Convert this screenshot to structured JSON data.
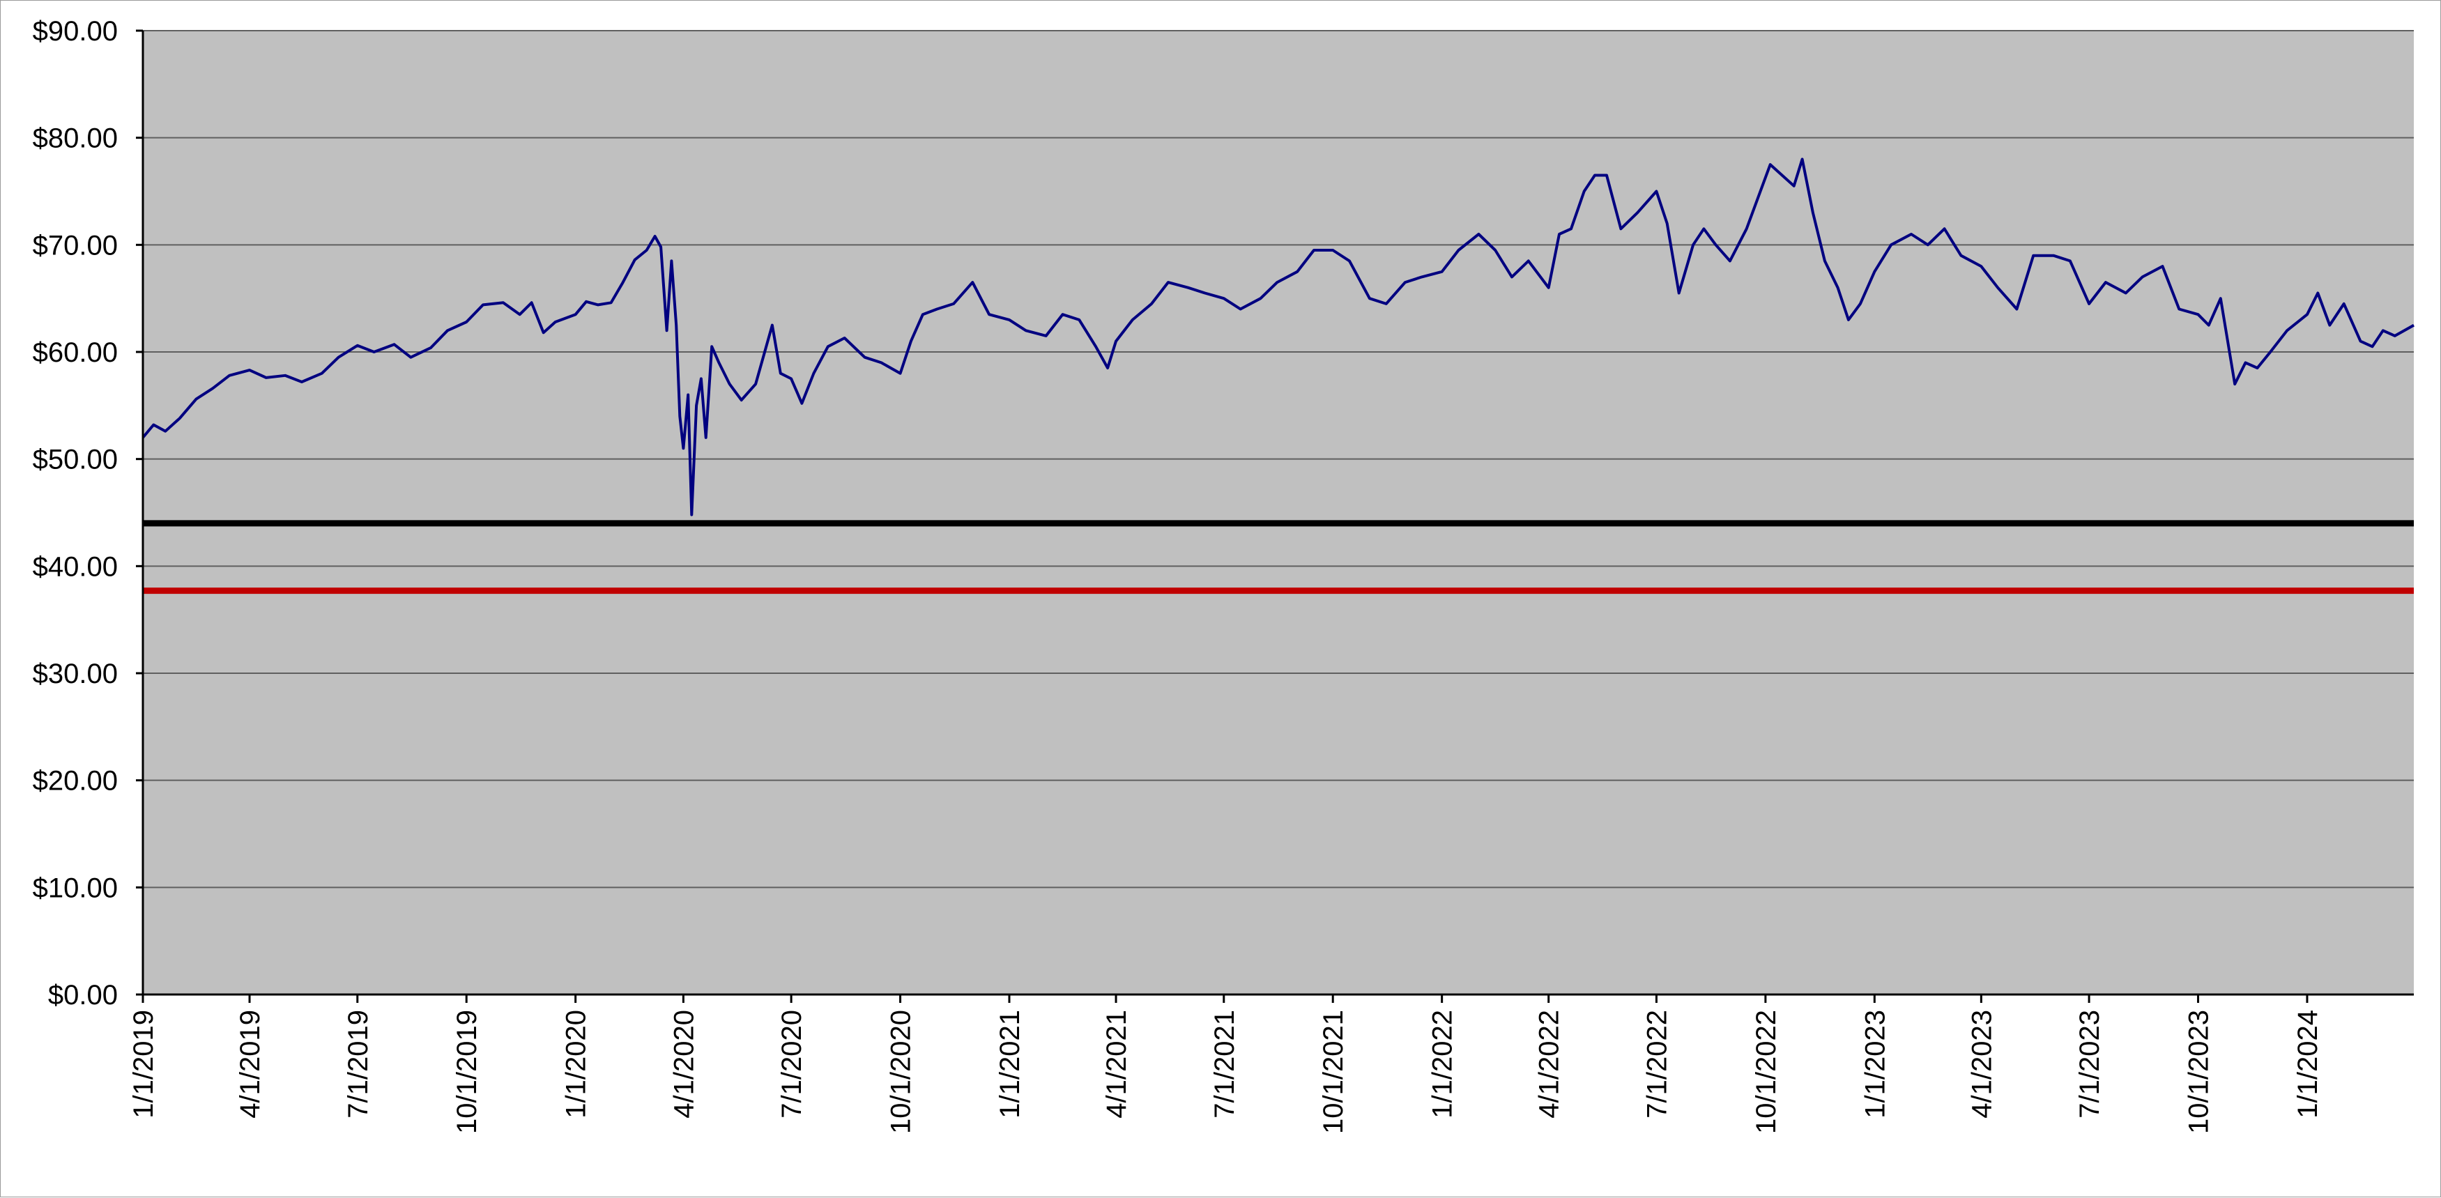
{
  "chart_data": {
    "type": "line",
    "title": "",
    "xlabel": "",
    "ylabel": "",
    "ylim": [
      0,
      90
    ],
    "y_ticks": [
      "$0.00",
      "$10.00",
      "$20.00",
      "$30.00",
      "$40.00",
      "$50.00",
      "$60.00",
      "$70.00",
      "$80.00",
      "$90.00"
    ],
    "y_tick_values": [
      0,
      10,
      20,
      30,
      40,
      50,
      60,
      70,
      80,
      90
    ],
    "x_range": [
      "2019-01-01",
      "2024-03-31"
    ],
    "x_ticks": [
      "1/1/2019",
      "4/1/2019",
      "7/1/2019",
      "10/1/2019",
      "1/1/2020",
      "4/1/2020",
      "7/1/2020",
      "10/1/2020",
      "1/1/2021",
      "4/1/2021",
      "7/1/2021",
      "10/1/2021",
      "1/1/2022",
      "4/1/2022",
      "7/1/2022",
      "10/1/2022",
      "1/1/2023",
      "4/1/2023",
      "7/1/2023",
      "10/1/2023",
      "1/1/2024"
    ],
    "x_tick_dates": [
      "2019-01-01",
      "2019-04-01",
      "2019-07-01",
      "2019-10-01",
      "2020-01-01",
      "2020-04-01",
      "2020-07-01",
      "2020-10-01",
      "2021-01-01",
      "2021-04-01",
      "2021-07-01",
      "2021-10-01",
      "2022-01-01",
      "2022-04-01",
      "2022-07-01",
      "2022-10-01",
      "2023-01-01",
      "2023-04-01",
      "2023-07-01",
      "2023-10-01",
      "2024-01-01"
    ],
    "grid": true,
    "legend": "none",
    "background_color": "#c0c0c0",
    "series": [
      {
        "color": "#000080",
        "points": [
          [
            "2019-01-01",
            52.0
          ],
          [
            "2019-01-10",
            53.2
          ],
          [
            "2019-01-20",
            52.6
          ],
          [
            "2019-02-01",
            53.8
          ],
          [
            "2019-02-15",
            55.6
          ],
          [
            "2019-03-01",
            56.6
          ],
          [
            "2019-03-15",
            57.8
          ],
          [
            "2019-04-01",
            58.3
          ],
          [
            "2019-04-15",
            57.6
          ],
          [
            "2019-05-01",
            57.8
          ],
          [
            "2019-05-15",
            57.2
          ],
          [
            "2019-06-01",
            58.0
          ],
          [
            "2019-06-15",
            59.5
          ],
          [
            "2019-07-01",
            60.6
          ],
          [
            "2019-07-15",
            60.0
          ],
          [
            "2019-08-01",
            60.7
          ],
          [
            "2019-08-15",
            59.5
          ],
          [
            "2019-09-01",
            60.4
          ],
          [
            "2019-09-15",
            62.0
          ],
          [
            "2019-10-01",
            62.8
          ],
          [
            "2019-10-15",
            64.4
          ],
          [
            "2019-11-01",
            64.6
          ],
          [
            "2019-11-15",
            63.5
          ],
          [
            "2019-11-25",
            64.6
          ],
          [
            "2019-12-05",
            61.8
          ],
          [
            "2019-12-15",
            62.8
          ],
          [
            "2020-01-01",
            63.5
          ],
          [
            "2020-01-10",
            64.7
          ],
          [
            "2020-01-20",
            64.4
          ],
          [
            "2020-01-31",
            64.6
          ],
          [
            "2020-02-10",
            66.5
          ],
          [
            "2020-02-20",
            68.6
          ],
          [
            "2020-03-01",
            69.5
          ],
          [
            "2020-03-08",
            70.8
          ],
          [
            "2020-03-13",
            69.8
          ],
          [
            "2020-03-18",
            62.0
          ],
          [
            "2020-03-22",
            68.5
          ],
          [
            "2020-03-26",
            62.5
          ],
          [
            "2020-03-29",
            54.0
          ],
          [
            "2020-04-01",
            51.0
          ],
          [
            "2020-04-05",
            56.0
          ],
          [
            "2020-04-08",
            44.8
          ],
          [
            "2020-04-12",
            55.0
          ],
          [
            "2020-04-16",
            57.5
          ],
          [
            "2020-04-20",
            52.0
          ],
          [
            "2020-04-25",
            60.5
          ],
          [
            "2020-05-01",
            59.0
          ],
          [
            "2020-05-10",
            57.0
          ],
          [
            "2020-05-20",
            55.5
          ],
          [
            "2020-06-01",
            57.0
          ],
          [
            "2020-06-15",
            62.5
          ],
          [
            "2020-06-22",
            58.0
          ],
          [
            "2020-07-01",
            57.5
          ],
          [
            "2020-07-10",
            55.2
          ],
          [
            "2020-07-20",
            58.0
          ],
          [
            "2020-08-01",
            60.5
          ],
          [
            "2020-08-15",
            61.3
          ],
          [
            "2020-09-01",
            59.5
          ],
          [
            "2020-09-15",
            59.0
          ],
          [
            "2020-10-01",
            58.0
          ],
          [
            "2020-10-10",
            61.0
          ],
          [
            "2020-10-20",
            63.5
          ],
          [
            "2020-11-01",
            64.0
          ],
          [
            "2020-11-15",
            64.5
          ],
          [
            "2020-12-01",
            66.5
          ],
          [
            "2020-12-15",
            63.5
          ],
          [
            "2021-01-01",
            63.0
          ],
          [
            "2021-01-15",
            62.0
          ],
          [
            "2021-02-01",
            61.5
          ],
          [
            "2021-02-15",
            63.5
          ],
          [
            "2021-03-01",
            63.0
          ],
          [
            "2021-03-15",
            60.5
          ],
          [
            "2021-03-25",
            58.5
          ],
          [
            "2021-04-01",
            61.0
          ],
          [
            "2021-04-15",
            63.0
          ],
          [
            "2021-05-01",
            64.5
          ],
          [
            "2021-05-15",
            66.5
          ],
          [
            "2021-06-01",
            66.0
          ],
          [
            "2021-06-15",
            65.5
          ],
          [
            "2021-07-01",
            65.0
          ],
          [
            "2021-07-15",
            64.0
          ],
          [
            "2021-08-01",
            65.0
          ],
          [
            "2021-08-15",
            66.5
          ],
          [
            "2021-09-01",
            67.5
          ],
          [
            "2021-09-15",
            69.5
          ],
          [
            "2021-10-01",
            69.5
          ],
          [
            "2021-10-15",
            68.5
          ],
          [
            "2021-11-01",
            65.0
          ],
          [
            "2021-11-15",
            64.5
          ],
          [
            "2021-12-01",
            66.5
          ],
          [
            "2021-12-15",
            67.0
          ],
          [
            "2022-01-01",
            67.5
          ],
          [
            "2022-01-15",
            69.5
          ],
          [
            "2022-02-01",
            71.0
          ],
          [
            "2022-02-15",
            69.5
          ],
          [
            "2022-03-01",
            67.0
          ],
          [
            "2022-03-15",
            68.5
          ],
          [
            "2022-04-01",
            66.0
          ],
          [
            "2022-04-10",
            71.0
          ],
          [
            "2022-04-20",
            71.5
          ],
          [
            "2022-05-01",
            75.0
          ],
          [
            "2022-05-10",
            76.5
          ],
          [
            "2022-05-20",
            76.5
          ],
          [
            "2022-06-01",
            71.5
          ],
          [
            "2022-06-15",
            73.0
          ],
          [
            "2022-07-01",
            75.0
          ],
          [
            "2022-07-10",
            72.0
          ],
          [
            "2022-07-20",
            65.5
          ],
          [
            "2022-08-01",
            70.0
          ],
          [
            "2022-08-10",
            71.5
          ],
          [
            "2022-08-20",
            70.0
          ],
          [
            "2022-09-01",
            68.5
          ],
          [
            "2022-09-15",
            71.5
          ],
          [
            "2022-09-25",
            74.5
          ],
          [
            "2022-10-05",
            77.5
          ],
          [
            "2022-10-15",
            76.5
          ],
          [
            "2022-10-25",
            75.5
          ],
          [
            "2022-11-01",
            78.0
          ],
          [
            "2022-11-10",
            73.0
          ],
          [
            "2022-11-20",
            68.5
          ],
          [
            "2022-12-01",
            66.0
          ],
          [
            "2022-12-10",
            63.0
          ],
          [
            "2022-12-20",
            64.5
          ],
          [
            "2023-01-01",
            67.5
          ],
          [
            "2023-01-15",
            70.0
          ],
          [
            "2023-02-01",
            71.0
          ],
          [
            "2023-02-15",
            70.0
          ],
          [
            "2023-03-01",
            71.5
          ],
          [
            "2023-03-15",
            69.0
          ],
          [
            "2023-04-01",
            68.0
          ],
          [
            "2023-04-15",
            66.0
          ],
          [
            "2023-05-01",
            64.0
          ],
          [
            "2023-05-15",
            69.0
          ],
          [
            "2023-06-01",
            69.0
          ],
          [
            "2023-06-15",
            68.5
          ],
          [
            "2023-07-01",
            64.5
          ],
          [
            "2023-07-15",
            66.5
          ],
          [
            "2023-08-01",
            65.5
          ],
          [
            "2023-08-15",
            67.0
          ],
          [
            "2023-09-01",
            68.0
          ],
          [
            "2023-09-15",
            64.0
          ],
          [
            "2023-10-01",
            63.5
          ],
          [
            "2023-10-10",
            62.5
          ],
          [
            "2023-10-20",
            65.0
          ],
          [
            "2023-11-01",
            57.0
          ],
          [
            "2023-11-10",
            59.0
          ],
          [
            "2023-11-20",
            58.5
          ],
          [
            "2023-12-01",
            60.0
          ],
          [
            "2023-12-15",
            62.0
          ],
          [
            "2024-01-01",
            63.5
          ],
          [
            "2024-01-10",
            65.5
          ],
          [
            "2024-01-20",
            62.5
          ],
          [
            "2024-02-01",
            64.5
          ],
          [
            "2024-02-15",
            61.0
          ],
          [
            "2024-02-25",
            60.5
          ],
          [
            "2024-03-05",
            62.0
          ],
          [
            "2024-03-15",
            61.5
          ],
          [
            "2024-03-31",
            62.5
          ]
        ]
      }
    ],
    "reference_lines": [
      {
        "y": 44.0,
        "color": "#000000"
      },
      {
        "y": 37.7,
        "color": "#c00000"
      }
    ]
  }
}
